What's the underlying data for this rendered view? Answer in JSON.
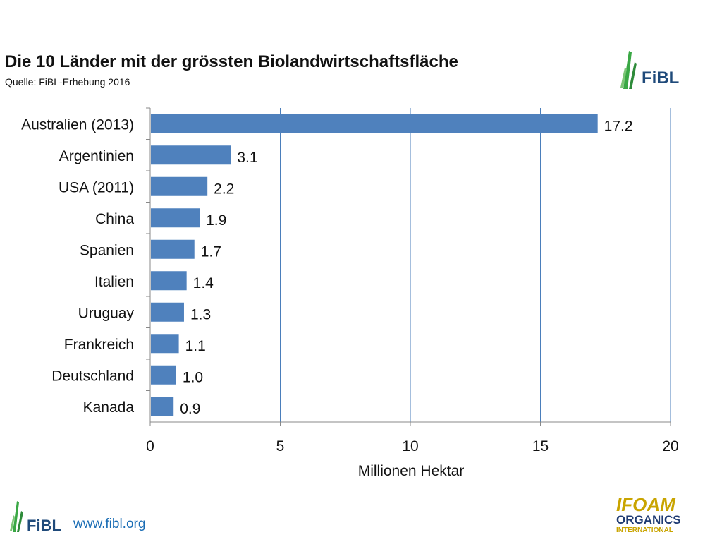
{
  "header": {
    "title": "Die 10 Länder mit der grössten Biolandwirtschaftsfläche",
    "subtitle": "Quelle: FiBL-Erhebung 2016"
  },
  "logos": {
    "fibl_text": "FiBL",
    "ifoam_line1": "IFOAM",
    "ifoam_line2": "ORGANICS",
    "ifoam_line3": "INTERNATIONAL"
  },
  "footer": {
    "url": "www.fibl.org"
  },
  "colors": {
    "bar": "#4f81bd",
    "grid": "#4a7ebb",
    "fibl_green": "#3aa845",
    "fibl_blue": "#1f4a7a",
    "ifoam_gold": "#c9a400"
  },
  "chart_data": {
    "type": "bar",
    "orientation": "horizontal",
    "categories": [
      "Australien (2013)",
      "Argentinien",
      "USA (2011)",
      "China",
      "Spanien",
      "Italien",
      "Uruguay",
      "Frankreich",
      "Deutschland",
      "Kanada"
    ],
    "values": [
      17.2,
      3.1,
      2.2,
      1.9,
      1.7,
      1.4,
      1.3,
      1.1,
      1.0,
      0.9
    ],
    "value_labels": [
      "17.2",
      "3.1",
      "2.2",
      "1.9",
      "1.7",
      "1.4",
      "1.3",
      "1.1",
      "1.0",
      "0.9"
    ],
    "xlabel": "Millionen Hektar",
    "xlim": [
      0,
      20
    ],
    "xticks": [
      "0",
      "5",
      "10",
      "15",
      "20"
    ],
    "xtick_values": [
      0,
      5,
      10,
      15,
      20
    ],
    "grid": "vertical"
  }
}
